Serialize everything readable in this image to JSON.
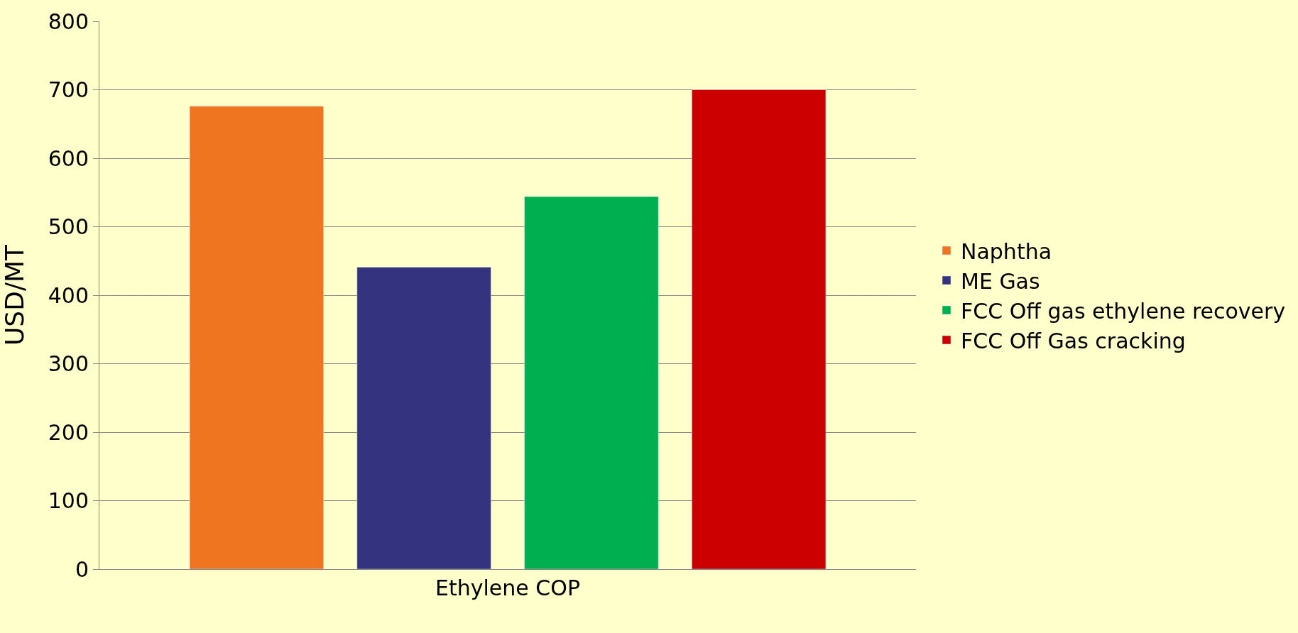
{
  "chart_data": {
    "type": "bar",
    "ylabel": "USD/MT",
    "categories": [
      "Ethylene COP"
    ],
    "series": [
      {
        "name": "Naphtha",
        "color": "#f07520",
        "values": [
          676
        ]
      },
      {
        "name": "ME Gas",
        "color": "#333380",
        "values": [
          441
        ]
      },
      {
        "name": "FCC Off gas ethylene recovery",
        "color": "#00b050",
        "values": [
          544
        ]
      },
      {
        "name": "FCC Off Gas cracking",
        "color": "#cc0000",
        "values": [
          700
        ]
      }
    ],
    "ylim": [
      0,
      800
    ],
    "yticks": [
      0,
      100,
      200,
      300,
      400,
      500,
      600,
      700,
      800
    ],
    "grid": "y",
    "legend": "right"
  }
}
